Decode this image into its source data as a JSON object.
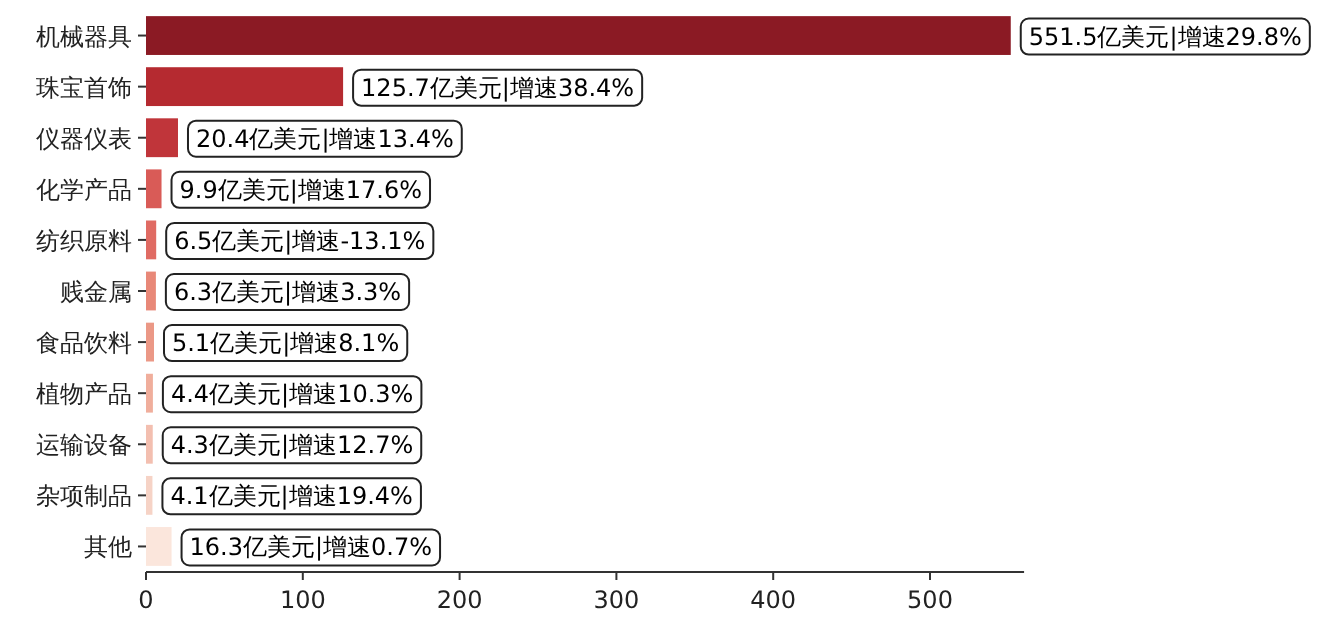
{
  "chart_data": {
    "type": "bar",
    "orientation": "horizontal",
    "categories": [
      "机械器具",
      "珠宝首饰",
      "仪器仪表",
      "化学产品",
      "纺织原料",
      "贱金属",
      "食品饮料",
      "植物产品",
      "运输设备",
      "杂项制品",
      "其他"
    ],
    "values": [
      551.5,
      125.7,
      20.4,
      9.9,
      6.5,
      6.3,
      5.1,
      4.4,
      4.3,
      4.1,
      16.3
    ],
    "colors": [
      "#8b1a24",
      "#b52a30",
      "#c0353a",
      "#d95b57",
      "#e06b63",
      "#e88878",
      "#eb9886",
      "#f0ae9c",
      "#f3bfb0",
      "#f6d3c6",
      "#fbe6dc"
    ],
    "value_labels": [
      "551.5亿美元|增速29.8%",
      "125.7亿美元|增速38.4%",
      "20.4亿美元|增速13.4%",
      "9.9亿美元|增速17.6%",
      "6.5亿美元|增速-13.1%",
      "6.3亿美元|增速3.3%",
      "5.1亿美元|增速8.1%",
      "4.4亿美元|增速10.3%",
      "4.3亿美元|增速12.7%",
      "4.1亿美元|增速19.4%",
      "16.3亿美元|增速0.7%"
    ],
    "xlim": [
      0,
      560
    ],
    "xticks": [
      0,
      100,
      200,
      300,
      400,
      500
    ],
    "grid": false
  }
}
